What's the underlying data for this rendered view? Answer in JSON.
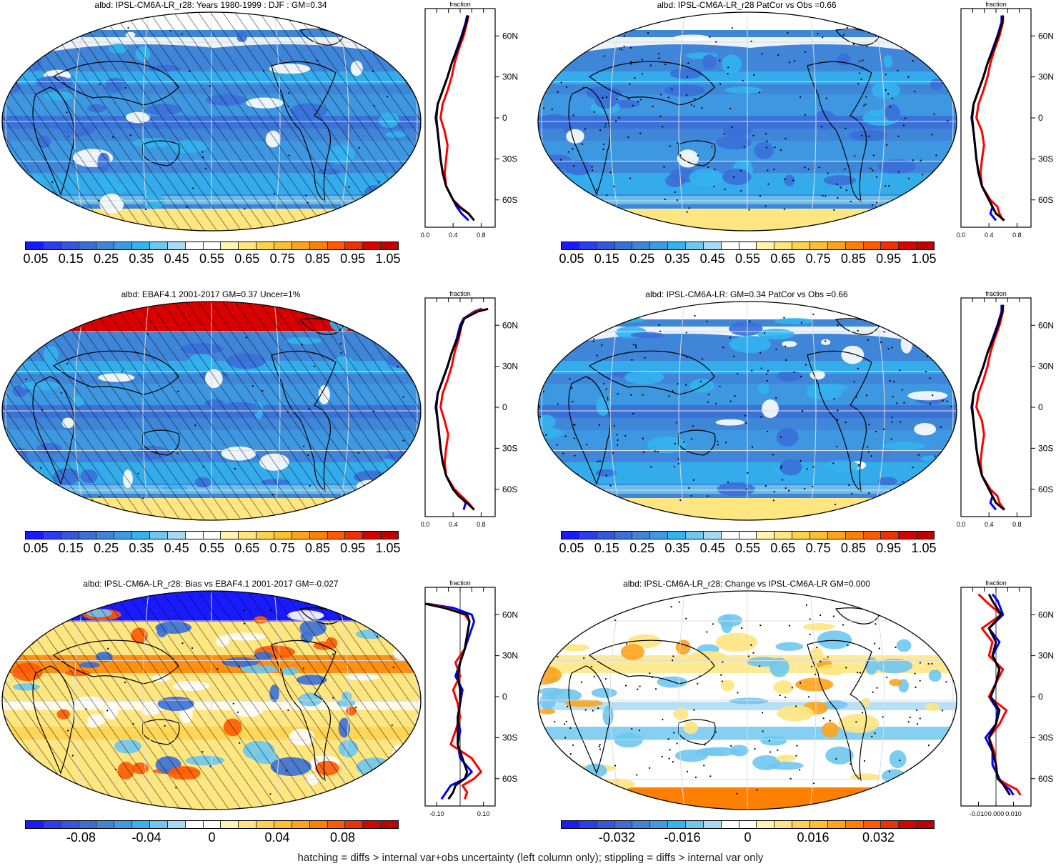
{
  "colors": {
    "scale": [
      "#1a1aff",
      "#2a3df0",
      "#3357e0",
      "#3a6fd8",
      "#3f85d8",
      "#3e9be3",
      "#33b3ef",
      "#6fc7f0",
      "#a8dbf3",
      "#ffffff",
      "#ffffff",
      "#fff4b0",
      "#ffe680",
      "#ffd24d",
      "#ffbf2e",
      "#ffa31a",
      "#ff8000",
      "#ff5a00",
      "#f03000",
      "#d90000",
      "#c00000"
    ],
    "land": "#000000",
    "model": "#0000ff",
    "obs": "#ff0000",
    "mean": "#000000"
  },
  "panels": [
    {
      "id": "p1",
      "title": "albd: IPSL-CM6A-LR_r28: Years 1980-1999 : DJF : GM=0.34",
      "colorbar_labels": [
        "0.05",
        "0.15",
        "0.25",
        "0.35",
        "0.45",
        "0.55",
        "0.65",
        "0.75",
        "0.85",
        "0.95",
        "1.05"
      ],
      "profile": {
        "label": "fraction",
        "lat_ticks": [
          "60N",
          "30N",
          "0",
          "30S",
          "60S"
        ],
        "x_ticks": [
          "0.0",
          "0.4",
          "0.8"
        ],
        "xlim": [
          0.0,
          1.0
        ]
      }
    },
    {
      "id": "p2",
      "title": "albd: IPSL-CM6A-LR_r28 PatCor vs Obs =0.66",
      "colorbar_labels": [
        "0.05",
        "0.15",
        "0.25",
        "0.35",
        "0.45",
        "0.55",
        "0.65",
        "0.75",
        "0.85",
        "0.95",
        "1.05"
      ],
      "profile": {
        "label": "fraction",
        "lat_ticks": [
          "60N",
          "30N",
          "0",
          "30S",
          "60S"
        ],
        "x_ticks": [
          "0.0",
          "0.4",
          "0.8"
        ],
        "xlim": [
          0.0,
          1.0
        ]
      }
    },
    {
      "id": "p3",
      "title": "albd: EBAF4.1 2001-2017 GM=0.37 Uncer=1%",
      "colorbar_labels": [
        "0.05",
        "0.15",
        "0.25",
        "0.35",
        "0.45",
        "0.55",
        "0.65",
        "0.75",
        "0.85",
        "0.95",
        "1.05"
      ],
      "profile": {
        "label": "fraction",
        "lat_ticks": [
          "60N",
          "30N",
          "0",
          "30S",
          "60S"
        ],
        "x_ticks": [
          "0.0",
          "0.4",
          "0.8"
        ],
        "xlim": [
          0.0,
          1.0
        ]
      }
    },
    {
      "id": "p4",
      "title": "albd: IPSL-CM6A-LR: GM=0.34 PatCor vs Obs =0.66",
      "colorbar_labels": [
        "0.05",
        "0.15",
        "0.25",
        "0.35",
        "0.45",
        "0.55",
        "0.65",
        "0.75",
        "0.85",
        "0.95",
        "1.05"
      ],
      "profile": {
        "label": "fraction",
        "lat_ticks": [
          "60N",
          "30N",
          "0",
          "30S",
          "60S"
        ],
        "x_ticks": [
          "0.0",
          "0.4",
          "0.8"
        ],
        "xlim": [
          0.0,
          1.0
        ]
      }
    },
    {
      "id": "p5",
      "title": "albd: IPSL-CM6A-LR_r28: Bias vs EBAF4.1 2001-2017 GM=-0.027",
      "colorbar_labels": [
        "-0.08",
        "-0.04",
        "0",
        "0.04",
        "0.08"
      ],
      "profile": {
        "label": "fraction",
        "lat_ticks": [
          "60N",
          "30N",
          "0",
          "30S",
          "60S"
        ],
        "x_ticks": [
          "-0.10",
          "0.10"
        ],
        "xlim": [
          -0.15,
          0.15
        ]
      }
    },
    {
      "id": "p6",
      "title": "albd: IPSL-CM6A-LR_r28: Change vs IPSL-CM6A-LR GM=0.000",
      "colorbar_labels": [
        "-0.032",
        "-0.016",
        "0",
        "0.016",
        "0.032"
      ],
      "profile": {
        "label": "fraction",
        "lat_ticks": [
          "60N",
          "30N",
          "0",
          "30S",
          "60S"
        ],
        "x_ticks": [
          "-0.010",
          "0.000",
          "0.010"
        ],
        "xlim": [
          -0.02,
          0.02
        ]
      }
    }
  ],
  "chart_data": [
    {
      "type": "line",
      "panel": "p1",
      "xlabel": "fraction",
      "y": [
        -75,
        -70,
        -65,
        -60,
        -50,
        -40,
        -30,
        -20,
        -10,
        0,
        10,
        20,
        30,
        40,
        50,
        60,
        70,
        75
      ],
      "series": [
        {
          "color": "blue",
          "values": [
            0.62,
            0.52,
            0.45,
            0.4,
            0.3,
            0.25,
            0.22,
            0.2,
            0.18,
            0.15,
            0.18,
            0.25,
            0.32,
            0.38,
            0.45,
            0.52,
            0.58,
            0.6
          ]
        },
        {
          "color": "red",
          "values": [
            0.7,
            0.62,
            0.5,
            0.4,
            0.3,
            0.28,
            0.3,
            0.32,
            0.28,
            0.22,
            0.25,
            0.32,
            0.38,
            0.42,
            0.48,
            0.55,
            0.6,
            0.62
          ]
        },
        {
          "color": "black",
          "values": [
            0.7,
            0.62,
            0.48,
            0.4,
            0.3,
            0.25,
            0.22,
            0.2,
            0.18,
            0.16,
            0.18,
            0.25,
            0.32,
            0.38,
            0.46,
            0.53,
            0.59,
            0.61
          ]
        }
      ]
    },
    {
      "type": "line",
      "panel": "p2",
      "xlabel": "fraction",
      "y": [
        -75,
        -70,
        -65,
        -60,
        -50,
        -40,
        -30,
        -20,
        -10,
        0,
        10,
        20,
        30,
        40,
        50,
        60,
        70,
        75
      ],
      "series": [
        {
          "color": "blue",
          "values": [
            0.5,
            0.42,
            0.45,
            0.4,
            0.3,
            0.25,
            0.22,
            0.2,
            0.18,
            0.15,
            0.18,
            0.25,
            0.32,
            0.38,
            0.45,
            0.52,
            0.58,
            0.58
          ]
        },
        {
          "color": "red",
          "values": [
            0.6,
            0.55,
            0.52,
            0.42,
            0.3,
            0.28,
            0.3,
            0.33,
            0.3,
            0.22,
            0.25,
            0.32,
            0.38,
            0.42,
            0.48,
            0.55,
            0.6,
            0.6
          ]
        },
        {
          "color": "black",
          "values": [
            0.62,
            0.5,
            0.45,
            0.4,
            0.3,
            0.25,
            0.22,
            0.2,
            0.18,
            0.16,
            0.18,
            0.25,
            0.32,
            0.38,
            0.46,
            0.53,
            0.59,
            0.6
          ]
        }
      ]
    },
    {
      "type": "line",
      "panel": "p3",
      "xlabel": "fraction",
      "y": [
        -75,
        -70,
        -65,
        -60,
        -50,
        -40,
        -30,
        -20,
        -10,
        0,
        10,
        20,
        30,
        40,
        50,
        60,
        65,
        70,
        72
      ],
      "series": [
        {
          "color": "blue",
          "values": [
            0.55,
            0.58,
            0.5,
            0.4,
            0.3,
            0.25,
            0.22,
            0.2,
            0.18,
            0.15,
            0.18,
            0.25,
            0.32,
            0.38,
            0.45,
            0.5,
            0.55,
            0.7,
            0.8
          ]
        },
        {
          "color": "red",
          "values": [
            0.7,
            0.62,
            0.52,
            0.42,
            0.3,
            0.28,
            0.3,
            0.33,
            0.28,
            0.22,
            0.25,
            0.32,
            0.38,
            0.42,
            0.48,
            0.52,
            0.56,
            0.72,
            0.82
          ]
        },
        {
          "color": "black",
          "values": [
            0.7,
            0.6,
            0.48,
            0.4,
            0.3,
            0.25,
            0.22,
            0.2,
            0.18,
            0.16,
            0.18,
            0.25,
            0.32,
            0.38,
            0.46,
            0.52,
            0.56,
            0.75,
            0.9
          ]
        }
      ]
    },
    {
      "type": "line",
      "panel": "p4",
      "xlabel": "fraction",
      "y": [
        -75,
        -70,
        -65,
        -60,
        -50,
        -40,
        -30,
        -20,
        -10,
        0,
        10,
        20,
        30,
        40,
        50,
        60,
        70,
        75
      ],
      "series": [
        {
          "color": "blue",
          "values": [
            0.5,
            0.42,
            0.45,
            0.4,
            0.3,
            0.25,
            0.22,
            0.2,
            0.18,
            0.15,
            0.18,
            0.25,
            0.32,
            0.38,
            0.45,
            0.52,
            0.58,
            0.58
          ]
        },
        {
          "color": "red",
          "values": [
            0.62,
            0.55,
            0.52,
            0.42,
            0.3,
            0.28,
            0.3,
            0.33,
            0.3,
            0.22,
            0.25,
            0.32,
            0.38,
            0.42,
            0.48,
            0.55,
            0.6,
            0.6
          ]
        },
        {
          "color": "black",
          "values": [
            0.62,
            0.5,
            0.45,
            0.4,
            0.3,
            0.25,
            0.22,
            0.2,
            0.18,
            0.16,
            0.18,
            0.25,
            0.32,
            0.38,
            0.46,
            0.53,
            0.59,
            0.6
          ]
        }
      ]
    },
    {
      "type": "line",
      "panel": "p5",
      "xlabel": "fraction",
      "y": [
        -75,
        -70,
        -65,
        -60,
        -55,
        -45,
        -35,
        -25,
        -15,
        -5,
        5,
        15,
        25,
        35,
        45,
        55,
        60,
        65,
        68
      ],
      "series": [
        {
          "color": "blue",
          "values": [
            -0.08,
            -0.06,
            -0.04,
            0.02,
            0.05,
            0.0,
            -0.01,
            0.0,
            -0.01,
            0.0,
            0.01,
            -0.02,
            0.0,
            0.02,
            0.04,
            0.06,
            0.05,
            -0.03,
            -0.14
          ]
        },
        {
          "color": "red",
          "values": [
            0.02,
            0.03,
            0.01,
            0.06,
            0.09,
            0.05,
            -0.04,
            -0.02,
            0.0,
            -0.01,
            -0.03,
            0.0,
            -0.02,
            0.02,
            0.03,
            0.04,
            0.02,
            -0.06,
            -0.14
          ]
        },
        {
          "color": "black",
          "values": [
            -0.05,
            -0.03,
            -0.02,
            0.02,
            0.03,
            0.01,
            -0.01,
            -0.01,
            -0.01,
            0.0,
            0.0,
            -0.01,
            0.0,
            0.02,
            0.03,
            0.04,
            0.03,
            -0.07,
            -0.15
          ]
        }
      ]
    },
    {
      "type": "line",
      "panel": "p6",
      "xlabel": "fraction",
      "y": [
        -72,
        -68,
        -64,
        -60,
        -50,
        -40,
        -30,
        -20,
        -10,
        0,
        10,
        20,
        30,
        40,
        50,
        60,
        70,
        75
      ],
      "series": [
        {
          "color": "blue",
          "values": [
            0.01,
            0.008,
            0.004,
            0.002,
            -0.002,
            -0.002,
            -0.006,
            0.0,
            0.001,
            -0.004,
            0.0,
            0.002,
            -0.002,
            0.002,
            -0.004,
            0.004,
            0.001,
            -0.002
          ]
        },
        {
          "color": "red",
          "values": [
            0.014,
            0.012,
            0.006,
            0.001,
            0.0,
            -0.001,
            -0.004,
            0.002,
            0.006,
            -0.004,
            0.0,
            0.004,
            -0.004,
            -0.002,
            -0.008,
            0.003,
            -0.006,
            -0.01
          ]
        },
        {
          "color": "black",
          "values": [
            0.008,
            0.006,
            0.004,
            0.001,
            0.0,
            -0.002,
            -0.004,
            0.0,
            0.002,
            -0.003,
            0.0,
            0.002,
            -0.002,
            0.0,
            -0.004,
            0.003,
            -0.002,
            -0.004
          ]
        }
      ]
    }
  ],
  "footer": "hatching = diffs > internal var+obs uncertainty (left column only); stippling = diffs > internal var only"
}
